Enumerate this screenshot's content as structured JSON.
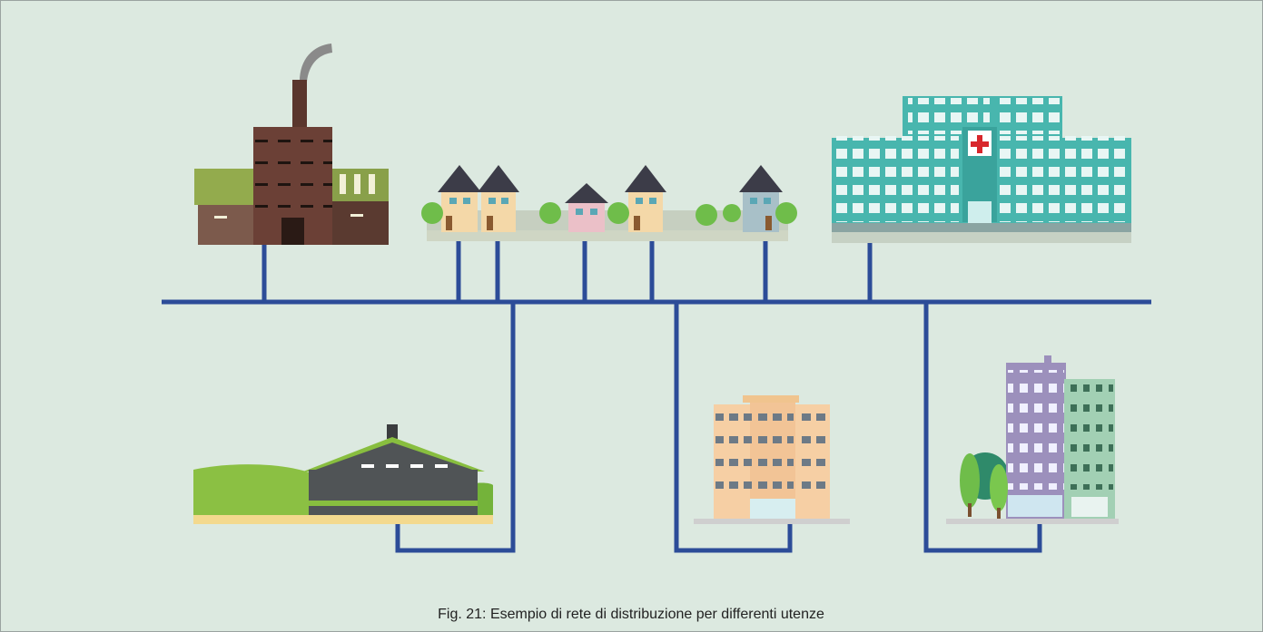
{
  "caption": "Fig. 21: Esempio di rete di distribuzione per differenti utenze"
}
